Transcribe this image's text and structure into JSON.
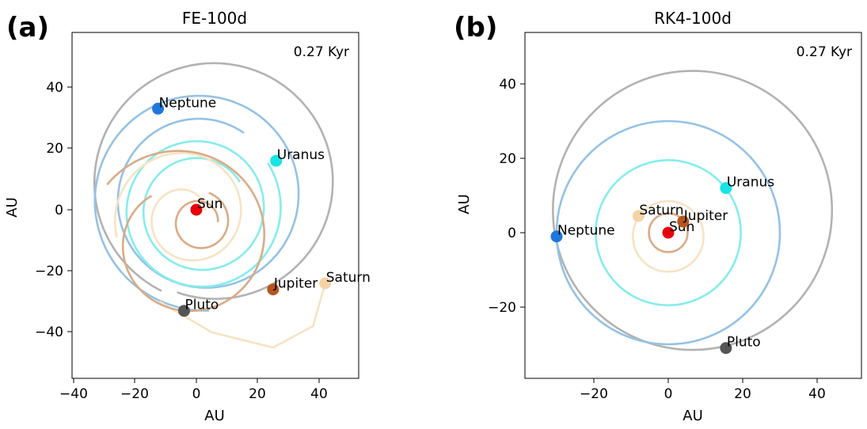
{
  "panels": [
    {
      "letter": "(a)",
      "title": "FE-100d",
      "time": "0.27 Kyr",
      "xlabel": "AU",
      "ylabel": "AU",
      "xticks": [
        -40,
        -20,
        0,
        20,
        40
      ],
      "yticks": [
        -40,
        -20,
        0,
        20,
        40
      ],
      "tick_labels_x": [
        "−40",
        "−20",
        "0",
        "20",
        "40"
      ],
      "tick_labels_y": [
        "−40",
        "−20",
        "0",
        "20",
        "40"
      ]
    },
    {
      "letter": "(b)",
      "title": "RK4-100d",
      "time": "0.27 Kyr",
      "xlabel": "AU",
      "ylabel": "AU",
      "xticks": [
        -20,
        0,
        20,
        40
      ],
      "yticks": [
        -20,
        0,
        20,
        40
      ],
      "tick_labels_x": [
        "−20",
        "0",
        "20",
        "40"
      ],
      "tick_labels_y": [
        "−20",
        "0",
        "20",
        "40"
      ]
    }
  ],
  "chart_data": [
    {
      "type": "scatter",
      "title": "FE-100d",
      "annotation": "0.27 Kyr",
      "xlabel": "AU",
      "ylabel": "AU",
      "xlim": [
        -41,
        53
      ],
      "ylim": [
        -55,
        58
      ],
      "bodies": [
        {
          "name": "Sun",
          "x": 0,
          "y": 0,
          "color": "#e8000b"
        },
        {
          "name": "Jupiter",
          "x": 25,
          "y": -26,
          "color": "#b5561d"
        },
        {
          "name": "Saturn",
          "x": 42,
          "y": -24,
          "color": "#f6d3a6"
        },
        {
          "name": "Uranus",
          "x": 26,
          "y": 16,
          "color": "#17e4e4"
        },
        {
          "name": "Neptune",
          "x": -12.5,
          "y": 33,
          "color": "#1f77dd"
        },
        {
          "name": "Pluto",
          "x": -4,
          "y": -33,
          "color": "#555555"
        }
      ],
      "orbit_colors": {
        "Jupiter": "#d9ab87",
        "Saturn": "#f7e3c3",
        "Uranus": "#86ecec",
        "Neptune": "#94c2e6",
        "Pluto": "#b2b2b2"
      },
      "grid": false
    },
    {
      "type": "scatter",
      "title": "RK4-100d",
      "annotation": "0.27 Kyr",
      "xlabel": "AU",
      "ylabel": "AU",
      "xlim": [
        -39,
        52
      ],
      "ylim": [
        -40,
        53
      ],
      "bodies": [
        {
          "name": "Sun",
          "x": 0,
          "y": 0,
          "color": "#e8000b"
        },
        {
          "name": "Jupiter",
          "x": 4,
          "y": 3,
          "color": "#b5561d"
        },
        {
          "name": "Saturn",
          "x": -8,
          "y": 4.5,
          "color": "#f6d3a6"
        },
        {
          "name": "Uranus",
          "x": 15.5,
          "y": 12,
          "color": "#17e4e4"
        },
        {
          "name": "Neptune",
          "x": -30,
          "y": -1,
          "color": "#1f77dd"
        },
        {
          "name": "Pluto",
          "x": 15.5,
          "y": -31,
          "color": "#555555"
        }
      ],
      "orbit_colors": {
        "Jupiter": "#d9ab87",
        "Saturn": "#f7e3c3",
        "Uranus": "#86ecec",
        "Neptune": "#94c2e6",
        "Pluto": "#b2b2b2"
      },
      "grid": false
    }
  ]
}
